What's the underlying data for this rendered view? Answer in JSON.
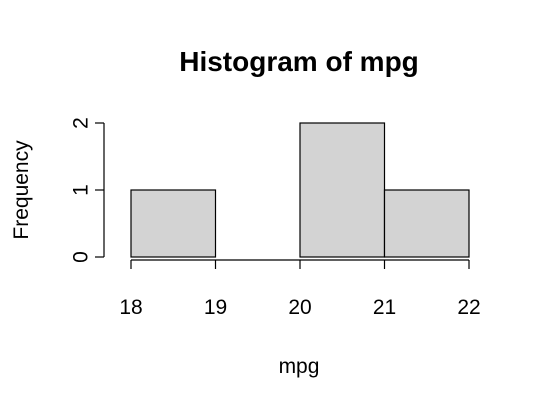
{
  "chart_data": {
    "type": "bar",
    "title": "Histogram of mpg",
    "xlabel": "mpg",
    "ylabel": "Frequency",
    "bins": [
      {
        "start": 18,
        "end": 19,
        "count": 1
      },
      {
        "start": 19,
        "end": 20,
        "count": 0
      },
      {
        "start": 20,
        "end": 21,
        "count": 2
      },
      {
        "start": 21,
        "end": 22,
        "count": 1
      }
    ],
    "xlim": [
      18,
      22
    ],
    "ylim": [
      0,
      2
    ],
    "x_ticks": [
      18,
      19,
      20,
      21,
      22
    ],
    "y_ticks": [
      0,
      1,
      2
    ],
    "bar_color": "#d3d3d3",
    "grid": false,
    "legend": "none"
  }
}
